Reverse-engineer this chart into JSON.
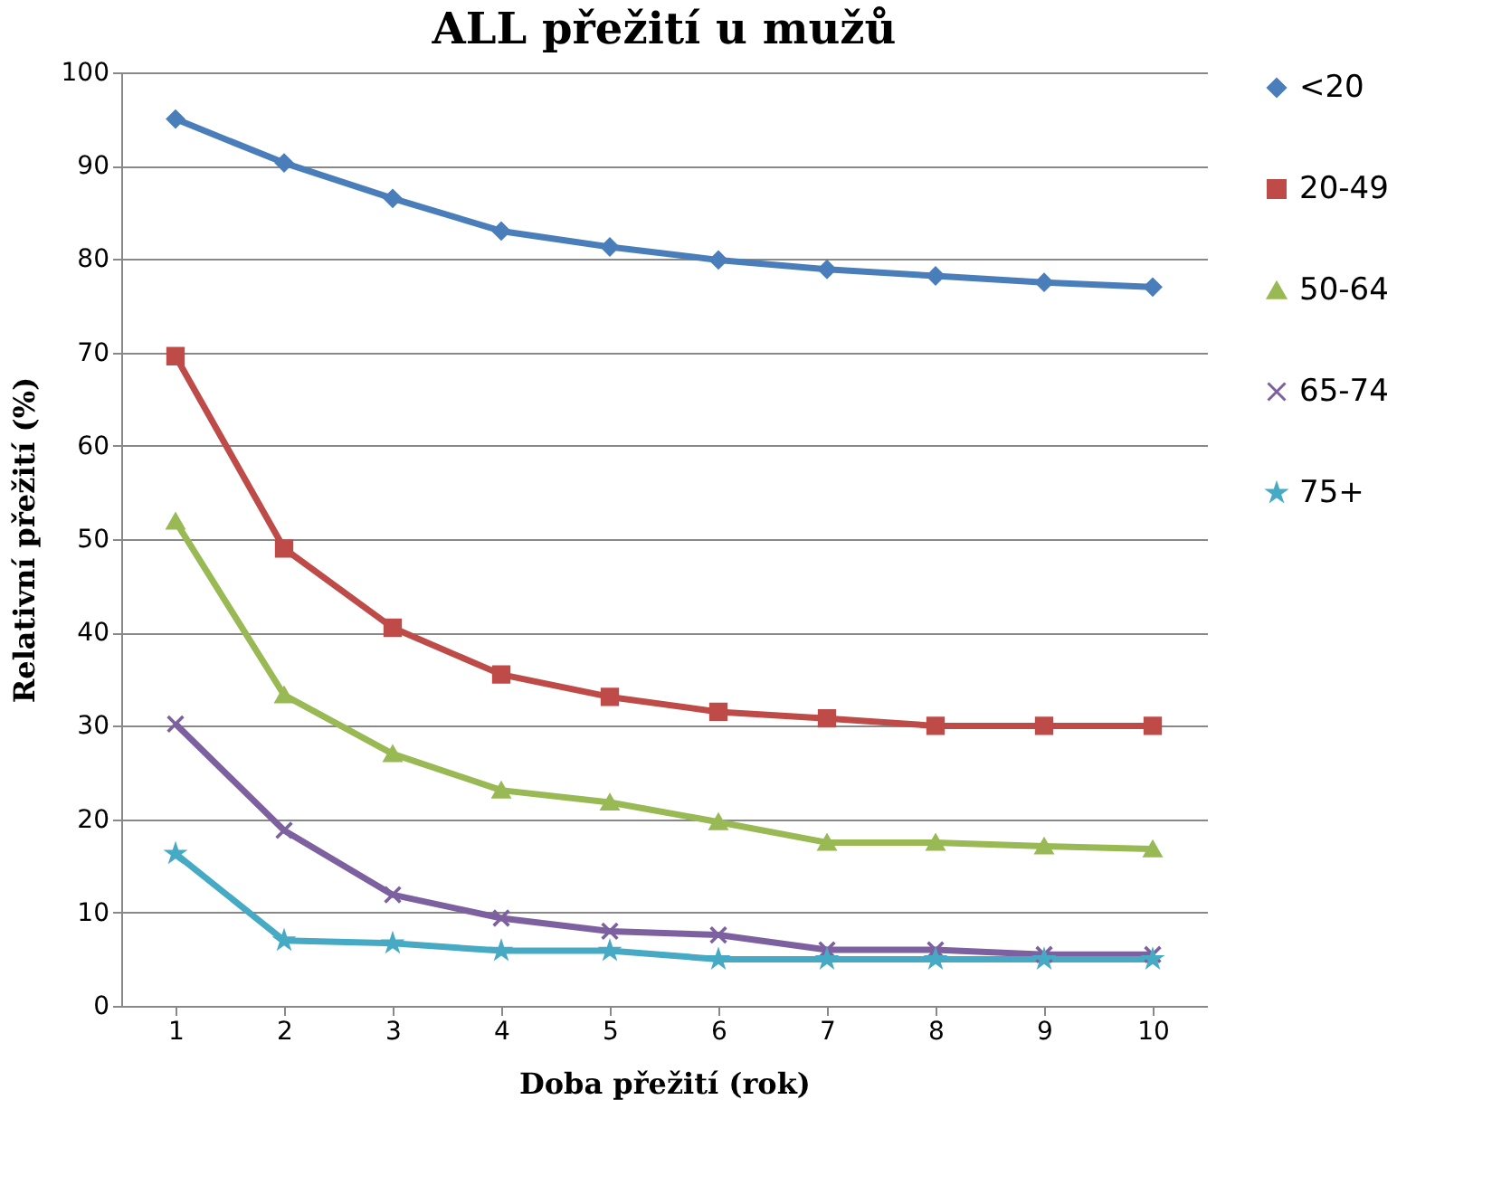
{
  "chart_data": {
    "type": "line",
    "title": "ALL přežití u mužů",
    "xlabel": "Doba přežití (rok)",
    "ylabel": "Relativní přežití (%)",
    "categories": [
      "1",
      "2",
      "3",
      "4",
      "5",
      "6",
      "7",
      "8",
      "9",
      "10"
    ],
    "series": [
      {
        "name": "<20",
        "color": "#4a7ebb",
        "marker": "diamond",
        "values": [
          95,
          90.3,
          86.5,
          83,
          81.3,
          79.9,
          78.9,
          78.2,
          77.5,
          77
        ]
      },
      {
        "name": "20-49",
        "color": "#be4b48",
        "marker": "square",
        "values": [
          69.6,
          49,
          40.5,
          35.5,
          33.1,
          31.5,
          30.8,
          30,
          30,
          30
        ]
      },
      {
        "name": "50-64",
        "color": "#98b954",
        "marker": "triangle",
        "values": [
          51.9,
          33.3,
          27,
          23.1,
          21.8,
          19.7,
          17.5,
          17.5,
          17.1,
          16.8
        ]
      },
      {
        "name": "65-74",
        "color": "#7d60a0",
        "marker": "cross",
        "values": [
          30.2,
          18.8,
          11.9,
          9.4,
          8,
          7.6,
          6,
          6,
          5.5,
          5.5
        ]
      },
      {
        "name": "75+",
        "color": "#46aac5",
        "marker": "star",
        "values": [
          16.3,
          7,
          6.7,
          5.9,
          5.9,
          5,
          5,
          5,
          5,
          5
        ]
      }
    ],
    "ylim": [
      0,
      100
    ],
    "yticks": [
      0,
      10,
      20,
      30,
      40,
      50,
      60,
      70,
      80,
      90,
      100
    ],
    "grid": "y",
    "legend": "right",
    "line_style": "solid"
  }
}
